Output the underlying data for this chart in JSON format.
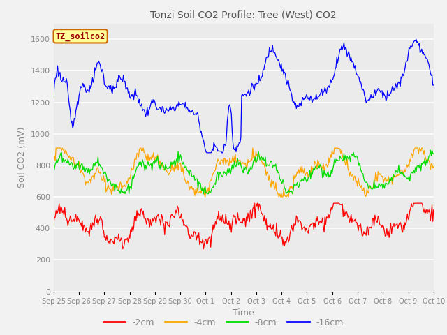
{
  "title": "Tonzi Soil CO2 Profile: Tree (West) CO2",
  "ylabel": "Soil CO2 (mV)",
  "xlabel": "Time",
  "ylim": [
    0,
    1700
  ],
  "yticks": [
    0,
    200,
    400,
    600,
    800,
    1000,
    1200,
    1400,
    1600
  ],
  "xtick_labels": [
    "Sep 25",
    "Sep 26",
    "Sep 27",
    "Sep 28",
    "Sep 29",
    "Sep 30",
    "Oct 1",
    "Oct 2",
    "Oct 3",
    "Oct 4",
    "Oct 5",
    "Oct 6",
    "Oct 7",
    "Oct 8",
    "Oct 9",
    "Oct 10"
  ],
  "legend_label": "TZ_soilco2",
  "line_colors": {
    "2cm": "#ff0000",
    "4cm": "#ffa500",
    "8cm": "#00dd00",
    "16cm": "#0000ff"
  },
  "plot_bg": "#ebebeb",
  "fig_bg": "#f2f2f2",
  "grid_color": "#ffffff",
  "title_color": "#555555",
  "axis_color": "#888888",
  "legend_box_facecolor": "#ffff99",
  "legend_box_edgecolor": "#cc6600",
  "legend_text_color": "#990000"
}
